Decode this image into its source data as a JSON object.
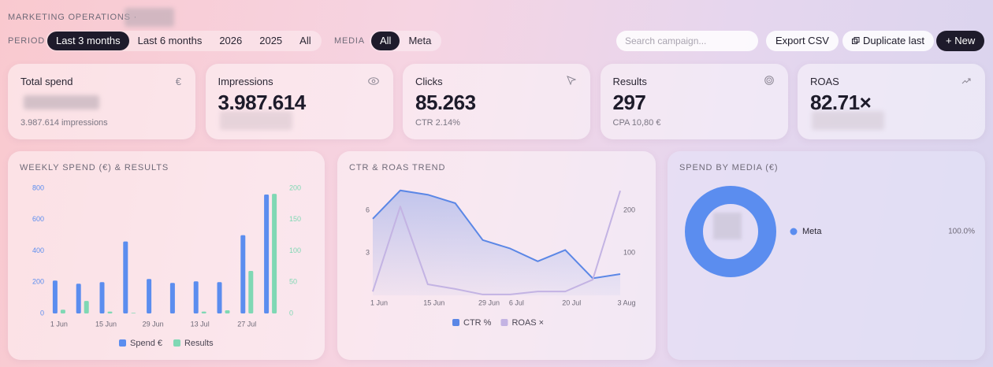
{
  "header": {
    "title": "MARKETING OPERATIONS ·"
  },
  "filters": {
    "period_label": "PERIOD",
    "period_options": [
      "Last 3 months",
      "Last 6 months",
      "2026",
      "2025",
      "All"
    ],
    "period_active": 0,
    "media_label": "MEDIA",
    "media_options": [
      "All",
      "Meta"
    ],
    "media_active": 0
  },
  "actions": {
    "search_placeholder": "Search campaign...",
    "export": "Export CSV",
    "duplicate": "Duplicate last",
    "new": "+ New"
  },
  "kpis": [
    {
      "label": "Total spend",
      "icon": "€",
      "sub": "3.987.614 impressions"
    },
    {
      "label": "Impressions",
      "value": "3.987.614"
    },
    {
      "label": "Clicks",
      "value": "85.263",
      "sub": "CTR 2.14%"
    },
    {
      "label": "Results",
      "value": "297",
      "sub": "CPA 10,80 €"
    },
    {
      "label": "ROAS",
      "value": "82.71×"
    }
  ],
  "chart_data": [
    {
      "type": "bar",
      "title": "WEEKLY SPEND (€) & RESULTS",
      "categories": [
        "1 Jun",
        null,
        "15 Jun",
        null,
        "29 Jun",
        null,
        "13 Jul",
        null,
        "27 Jul",
        null
      ],
      "series": [
        {
          "name": "Spend €",
          "color": "#5b8def",
          "values": [
            210,
            190,
            200,
            460,
            220,
            195,
            205,
            200,
            500,
            760
          ]
        },
        {
          "name": "Results",
          "color": "#7fd8b4",
          "axis": "y2",
          "values": [
            6,
            20,
            3,
            1,
            0,
            0,
            3,
            5,
            68,
            191
          ]
        }
      ],
      "ylim": [
        0,
        800
      ],
      "yticks": [
        0,
        200,
        400,
        600,
        800
      ],
      "y2lim": [
        0,
        200
      ],
      "y2ticks": [
        0,
        50,
        100,
        150,
        200
      ]
    },
    {
      "type": "line",
      "title": "CTR & ROAS TREND",
      "categories": [
        "1 Jun",
        null,
        "15 Jun",
        null,
        "29 Jun",
        "6 Jul",
        null,
        "20 Jul",
        null,
        "3 Aug"
      ],
      "series": [
        {
          "name": "CTR %",
          "color": "#5b87e6",
          "values": [
            5.4,
            7.4,
            7.1,
            6.5,
            3.9,
            3.3,
            2.4,
            3.2,
            1.2,
            1.5
          ]
        },
        {
          "name": "ROAS ×",
          "color": "#c3b3e3",
          "axis": "y2",
          "values": [
            9,
            209,
            26,
            15,
            2,
            2,
            9,
            9,
            37,
            246
          ]
        }
      ],
      "ylim": [
        0,
        7.5
      ],
      "yticks": [
        3,
        6
      ],
      "y2lim": [
        0,
        250
      ],
      "y2ticks": [
        100,
        200
      ]
    },
    {
      "type": "pie",
      "title": "SPEND BY MEDIA (€)",
      "categories": [
        "Meta"
      ],
      "values": [
        100
      ],
      "value_labels": [
        "100.0%"
      ],
      "colors": [
        "#5b8def"
      ]
    }
  ]
}
